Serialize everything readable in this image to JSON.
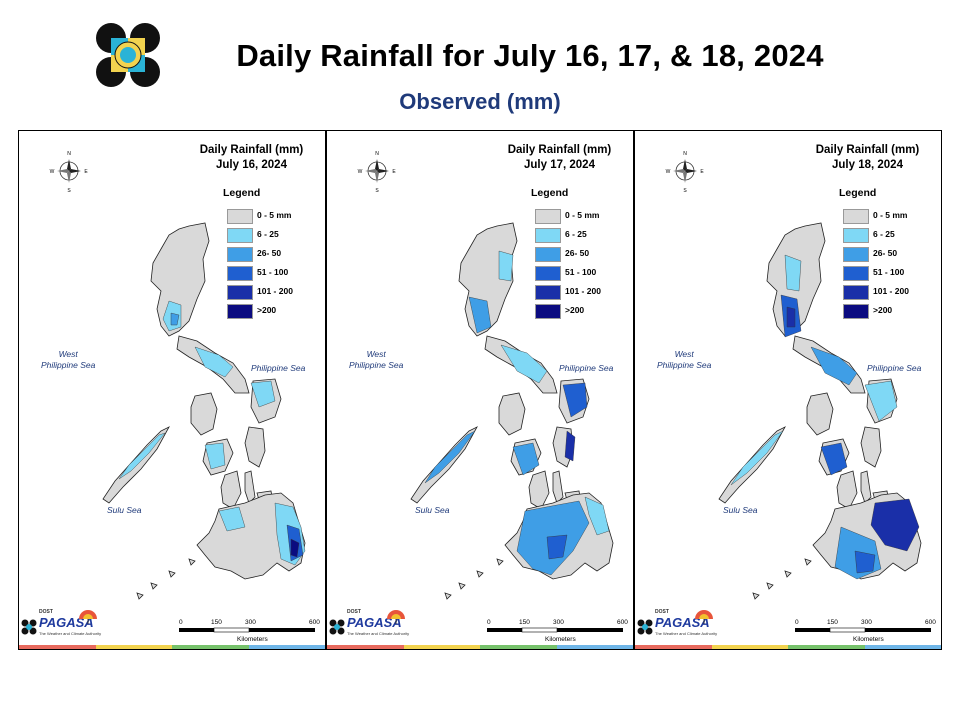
{
  "title": "Daily Rainfall for July 16, 17, & 18, 2024",
  "subtitle": "Observed (mm)",
  "panels": [
    {
      "title_line1": "Daily Rainfall (mm)",
      "title_line2": "July 16, 2024"
    },
    {
      "title_line1": "Daily Rainfall (mm)",
      "title_line2": "July 17, 2024"
    },
    {
      "title_line1": "Daily Rainfall (mm)",
      "title_line2": "July 18, 2024"
    }
  ],
  "legend": {
    "title": "Legend",
    "items": [
      {
        "label": "0 - 5 mm",
        "color": "#d9d9d9"
      },
      {
        "label": "6 - 25",
        "color": "#7fd8f5"
      },
      {
        "label": "26- 50",
        "color": "#3f9ee6"
      },
      {
        "label": "51 - 100",
        "color": "#1f5fd0"
      },
      {
        "label": "101 - 200",
        "color": "#1a2fa8"
      },
      {
        "label": ">200",
        "color": "#0b0b80"
      }
    ]
  },
  "seas": {
    "west": "West\nPhilippine Sea",
    "east": "Philippine Sea",
    "sulu": "Sulu Sea"
  },
  "compass": {
    "n": "N",
    "s": "S",
    "e": "E",
    "w": "W"
  },
  "scale": {
    "ticks": [
      "0",
      "150",
      "300",
      "600"
    ],
    "unit": "Kilometers"
  },
  "agency": {
    "name": "PAGASA",
    "dost": "DOST",
    "tagline": "The Weather and Climate Authority"
  },
  "stripe_colors": [
    "#e86a5e",
    "#f2d34f",
    "#76c26b",
    "#6fb6e8"
  ]
}
